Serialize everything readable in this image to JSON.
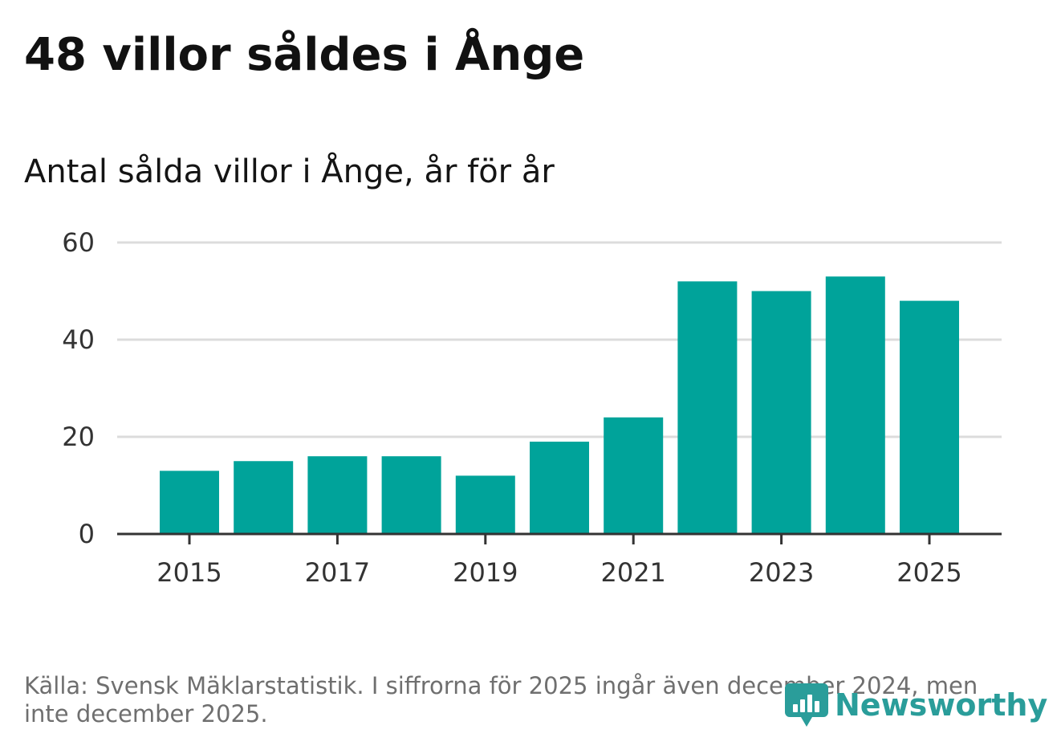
{
  "chart_data": {
    "type": "bar",
    "title": "48 villor såldes i Ånge",
    "subtitle": "Antal sålda villor i Ånge, år för år",
    "categories": [
      "2015",
      "2016",
      "2017",
      "2018",
      "2019",
      "2020",
      "2021",
      "2022",
      "2023",
      "2024",
      "2025"
    ],
    "values": [
      13,
      15,
      16,
      16,
      12,
      19,
      24,
      52,
      50,
      53,
      48
    ],
    "x_tick_labels": [
      "2015",
      "2017",
      "2019",
      "2021",
      "2023",
      "2025"
    ],
    "y_ticks": [
      0,
      20,
      40,
      60
    ],
    "ylim": [
      0,
      60
    ],
    "xlabel": "",
    "ylabel": "",
    "grid": true,
    "bar_color": "#00a39a"
  },
  "footer": {
    "source": "Källa: Svensk Mäklarstatistik. I siffrorna för 2025 ingår även december 2024, men inte december 2025."
  },
  "brand": {
    "name": "Newsworthy",
    "color": "#2a9d9a",
    "icon": "newsworthy-logo-icon"
  },
  "colors": {
    "grid": "#dcdcdc",
    "axis": "#333333",
    "text": "#111111",
    "muted": "#6f6f6f"
  }
}
